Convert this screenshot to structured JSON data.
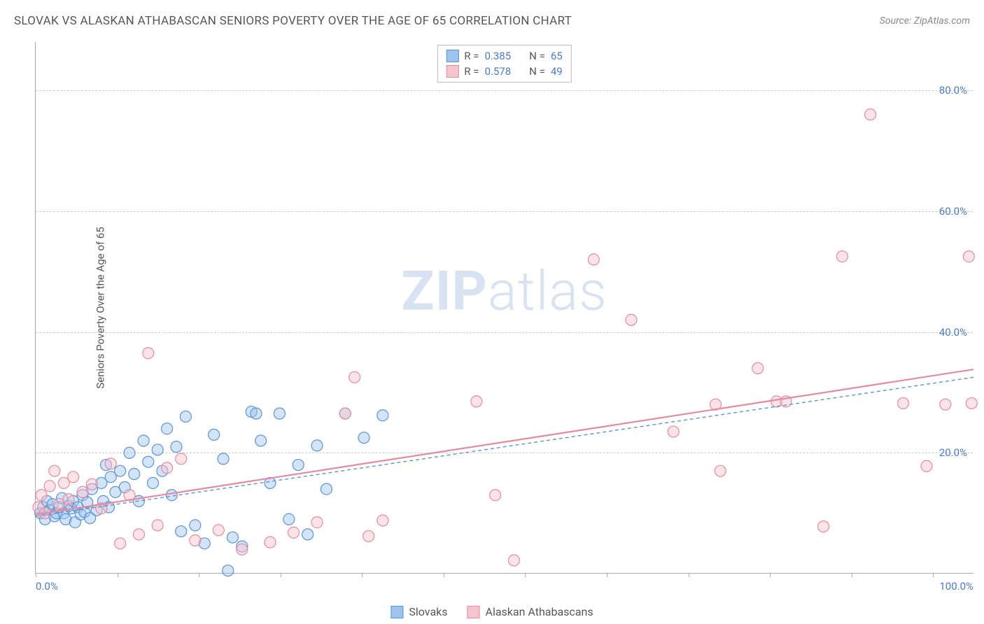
{
  "title": "SLOVAK VS ALASKAN ATHABASCAN SENIORS POVERTY OVER THE AGE OF 65 CORRELATION CHART",
  "source_prefix": "Source: ",
  "source_name": "ZipAtlas.com",
  "ylabel": "Seniors Poverty Over the Age of 65",
  "watermark_bold": "ZIP",
  "watermark_light": "atlas",
  "chart": {
    "type": "scatter",
    "xlim": [
      0,
      100
    ],
    "ylim": [
      0,
      88
    ],
    "x_tick_label_min": "0.0%",
    "x_tick_label_max": "100.0%",
    "x_minor_ticks": [
      0,
      8.7,
      17.4,
      26.1,
      34.8,
      43.5,
      52.2,
      60.9,
      69.6,
      78.3,
      87.0,
      95.7
    ],
    "y_gridlines": [
      20,
      40,
      60,
      80
    ],
    "y_tick_labels": [
      "20.0%",
      "40.0%",
      "60.0%",
      "80.0%"
    ],
    "background_color": "#ffffff",
    "grid_color": "#cccccc",
    "axis_color": "#aaaaaa",
    "tick_label_color": "#4a7bc8",
    "marker_radius": 8,
    "marker_opacity": 0.45,
    "series": [
      {
        "name": "Slovaks",
        "fill_color": "#9ec3ed",
        "stroke_color": "#5b93d6",
        "r_label": "R =",
        "r_value": "0.385",
        "n_label": "N =",
        "n_value": "65",
        "trendline": {
          "x1": 0,
          "y1": 9.5,
          "x2": 100,
          "y2": 32.5,
          "dash": "5,4",
          "width": 1.4
        },
        "points": [
          [
            0.5,
            10
          ],
          [
            0.8,
            11
          ],
          [
            1.0,
            9
          ],
          [
            1.2,
            12
          ],
          [
            1.5,
            10.5
          ],
          [
            1.8,
            11.5
          ],
          [
            2.0,
            9.5
          ],
          [
            2.2,
            10
          ],
          [
            2.5,
            11
          ],
          [
            2.8,
            12.5
          ],
          [
            3.0,
            10
          ],
          [
            3.2,
            9
          ],
          [
            3.5,
            11.2
          ],
          [
            3.8,
            10.8
          ],
          [
            4.0,
            12
          ],
          [
            4.2,
            8.5
          ],
          [
            4.5,
            11
          ],
          [
            4.8,
            9.8
          ],
          [
            5.0,
            13
          ],
          [
            5.2,
            10.2
          ],
          [
            5.5,
            11.8
          ],
          [
            5.8,
            9.2
          ],
          [
            6.0,
            14
          ],
          [
            6.5,
            10.5
          ],
          [
            7.0,
            15
          ],
          [
            7.2,
            12
          ],
          [
            7.5,
            18
          ],
          [
            7.8,
            11
          ],
          [
            8.0,
            16
          ],
          [
            8.5,
            13.5
          ],
          [
            9.0,
            17
          ],
          [
            9.5,
            14.3
          ],
          [
            10.0,
            20
          ],
          [
            10.5,
            16.5
          ],
          [
            11.0,
            12
          ],
          [
            11.5,
            22
          ],
          [
            12.0,
            18.5
          ],
          [
            12.5,
            15
          ],
          [
            13.0,
            20.5
          ],
          [
            13.5,
            17
          ],
          [
            14.0,
            24
          ],
          [
            14.5,
            13
          ],
          [
            15.0,
            21
          ],
          [
            15.5,
            7
          ],
          [
            16.0,
            26
          ],
          [
            17.0,
            8
          ],
          [
            18.0,
            5
          ],
          [
            19.0,
            23
          ],
          [
            20.0,
            19
          ],
          [
            21.0,
            6
          ],
          [
            22.0,
            4.5
          ],
          [
            23.0,
            26.8
          ],
          [
            24.0,
            22
          ],
          [
            25.0,
            15
          ],
          [
            26.0,
            26.5
          ],
          [
            27.0,
            9
          ],
          [
            28.0,
            18
          ],
          [
            29.0,
            6.5
          ],
          [
            30.0,
            21.2
          ],
          [
            31.0,
            14
          ],
          [
            33.0,
            26.5
          ],
          [
            35.0,
            22.5
          ],
          [
            37.0,
            26.2
          ],
          [
            20.5,
            0.5
          ],
          [
            23.5,
            26.5
          ]
        ]
      },
      {
        "name": "Alaskan Athabascans",
        "fill_color": "#f6c4cd",
        "stroke_color": "#e68aa0",
        "r_label": "R =",
        "r_value": "0.578",
        "n_label": "N =",
        "n_value": "49",
        "trendline": {
          "x1": 0,
          "y1": 9.8,
          "x2": 100,
          "y2": 33.8,
          "dash": "none",
          "width": 2.2
        },
        "points": [
          [
            0.3,
            11
          ],
          [
            0.6,
            13
          ],
          [
            1.0,
            10
          ],
          [
            1.5,
            14.5
          ],
          [
            2.0,
            17
          ],
          [
            2.5,
            11.5
          ],
          [
            3.0,
            15
          ],
          [
            3.5,
            12.3
          ],
          [
            4.0,
            16
          ],
          [
            5.0,
            13.5
          ],
          [
            6.0,
            14.8
          ],
          [
            7.0,
            10.8
          ],
          [
            8.0,
            18.2
          ],
          [
            9.0,
            5
          ],
          [
            10.0,
            13
          ],
          [
            11.0,
            6.5
          ],
          [
            12.0,
            36.5
          ],
          [
            13.0,
            8
          ],
          [
            14.0,
            17.5
          ],
          [
            15.5,
            19
          ],
          [
            17.0,
            5.5
          ],
          [
            19.5,
            7.2
          ],
          [
            22.0,
            4
          ],
          [
            25.0,
            5.2
          ],
          [
            27.5,
            6.8
          ],
          [
            30.0,
            8.5
          ],
          [
            33.0,
            26.5
          ],
          [
            34.0,
            32.5
          ],
          [
            35.5,
            6.2
          ],
          [
            37.0,
            8.8
          ],
          [
            47.0,
            28.5
          ],
          [
            49.0,
            13
          ],
          [
            51.0,
            2.2
          ],
          [
            59.5,
            52
          ],
          [
            63.5,
            42
          ],
          [
            68.0,
            23.5
          ],
          [
            72.5,
            28
          ],
          [
            73.0,
            17
          ],
          [
            77.0,
            34
          ],
          [
            79.0,
            28.5
          ],
          [
            80.0,
            28.5
          ],
          [
            84.0,
            7.8
          ],
          [
            86.0,
            52.5
          ],
          [
            89.0,
            76
          ],
          [
            92.5,
            28.2
          ],
          [
            95.0,
            17.8
          ],
          [
            97.0,
            28
          ],
          [
            99.5,
            52.5
          ],
          [
            99.8,
            28.2
          ]
        ]
      }
    ]
  },
  "legend": {
    "series1_label": "Slovaks",
    "series2_label": "Alaskan Athabascans"
  }
}
